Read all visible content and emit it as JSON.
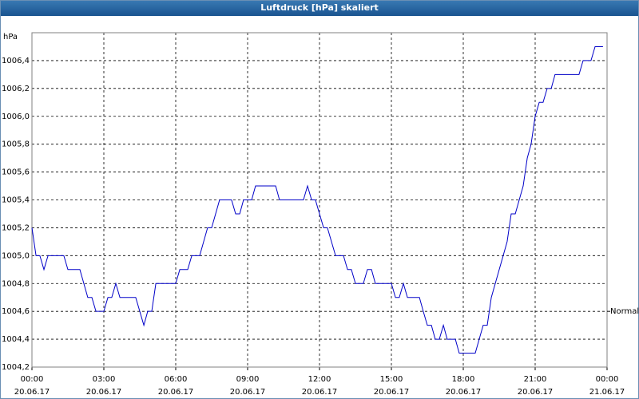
{
  "chart_data": {
    "type": "line",
    "title": "Luftdruck [hPa] skaliert",
    "y_unit": "hPa",
    "color": "#0000c8",
    "grid": true,
    "xlim": [
      0,
      24
    ],
    "xticks": [
      {
        "value": 0,
        "label": "00:00"
      },
      {
        "value": 3,
        "label": "03:00"
      },
      {
        "value": 6,
        "label": "06:00"
      },
      {
        "value": 9,
        "label": "09:00"
      },
      {
        "value": 12,
        "label": "12:00"
      },
      {
        "value": 15,
        "label": "15:00"
      },
      {
        "value": 18,
        "label": "18:00"
      },
      {
        "value": 21,
        "label": "21:00"
      },
      {
        "value": 24,
        "label": "00:00"
      }
    ],
    "xtick_dates": [
      "20.06.17",
      "20.06.17",
      "20.06.17",
      "20.06.17",
      "20.06.17",
      "20.06.17",
      "20.06.17",
      "20.06.17",
      "21.06.17"
    ],
    "ylim": [
      1004.2,
      1006.6
    ],
    "yticks": [
      {
        "value": 1004.2,
        "label": "1004,2"
      },
      {
        "value": 1004.4,
        "label": "1004,4"
      },
      {
        "value": 1004.6,
        "label": "1004,6"
      },
      {
        "value": 1004.8,
        "label": "1004,8"
      },
      {
        "value": 1005.0,
        "label": "1005,0"
      },
      {
        "value": 1005.2,
        "label": "1005,2"
      },
      {
        "value": 1005.4,
        "label": "1005,4"
      },
      {
        "value": 1005.6,
        "label": "1005,6"
      },
      {
        "value": 1005.8,
        "label": "1005,8"
      },
      {
        "value": 1006.0,
        "label": "1006,0"
      },
      {
        "value": 1006.2,
        "label": "1006,2"
      },
      {
        "value": 1006.4,
        "label": "1006,4"
      }
    ],
    "reference": {
      "label": "Normal",
      "value": 1004.6
    },
    "x": [
      0,
      0.17,
      0.33,
      0.5,
      0.67,
      1.33,
      1.5,
      2,
      2.33,
      2.5,
      2.67,
      3,
      3.17,
      3.33,
      3.5,
      3.67,
      4.33,
      4.67,
      4.83,
      5,
      5.17,
      6,
      6.17,
      6.5,
      6.67,
      7,
      7.33,
      7.5,
      7.83,
      8.33,
      8.5,
      8.67,
      8.83,
      9.17,
      9.33,
      10.17,
      10.33,
      11.33,
      11.5,
      11.67,
      11.83,
      12.17,
      12.33,
      12.67,
      13,
      13.17,
      13.33,
      13.5,
      13.83,
      14,
      14.17,
      14.33,
      15,
      15.17,
      15.33,
      15.5,
      15.67,
      16.17,
      16.33,
      16.5,
      16.67,
      16.83,
      17,
      17.17,
      17.33,
      17.67,
      17.83,
      18.5,
      18.83,
      19,
      19.17,
      19.83,
      20,
      20.17,
      20.5,
      20.67,
      20.83,
      21,
      21.17,
      21.33,
      21.5,
      21.67,
      21.83,
      22.83,
      23,
      23.33,
      23.5,
      23.83
    ],
    "values": [
      1005.2,
      1005.0,
      1005.0,
      1004.9,
      1005.0,
      1005.0,
      1004.9,
      1004.9,
      1004.7,
      1004.7,
      1004.6,
      1004.6,
      1004.7,
      1004.7,
      1004.8,
      1004.7,
      1004.7,
      1004.5,
      1004.6,
      1004.6,
      1004.8,
      1004.8,
      1004.9,
      1004.9,
      1005.0,
      1005.0,
      1005.2,
      1005.2,
      1005.4,
      1005.4,
      1005.3,
      1005.3,
      1005.4,
      1005.4,
      1005.5,
      1005.5,
      1005.4,
      1005.4,
      1005.5,
      1005.4,
      1005.4,
      1005.2,
      1005.2,
      1005.0,
      1005.0,
      1004.9,
      1004.9,
      1004.8,
      1004.8,
      1004.9,
      1004.9,
      1004.8,
      1004.8,
      1004.7,
      1004.7,
      1004.8,
      1004.7,
      1004.7,
      1004.6,
      1004.5,
      1004.5,
      1004.4,
      1004.4,
      1004.5,
      1004.4,
      1004.4,
      1004.3,
      1004.3,
      1004.5,
      1004.5,
      1004.7,
      1005.1,
      1005.3,
      1005.3,
      1005.5,
      1005.7,
      1005.8,
      1006.0,
      1006.1,
      1006.1,
      1006.2,
      1006.2,
      1006.3,
      1006.3,
      1006.4,
      1006.4,
      1006.5,
      1006.5
    ]
  }
}
